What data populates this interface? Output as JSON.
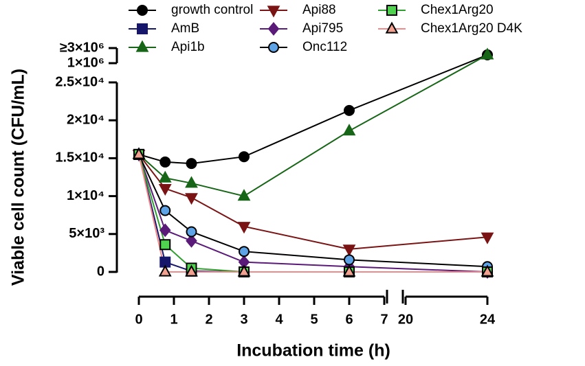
{
  "chart_data": {
    "type": "line",
    "xlabel": "Incubation time (h)",
    "ylabel": "Viable cell count (CFU/mL)",
    "x": [
      0,
      0.75,
      1.5,
      3,
      6,
      24
    ],
    "xlim": [
      0,
      24
    ],
    "xbreak": [
      7,
      20
    ],
    "xticks": [
      0,
      1,
      2,
      3,
      4,
      5,
      6,
      7,
      20,
      24
    ],
    "ylim": [
      0,
      3000000
    ],
    "ybreak": [
      25000,
      1000000
    ],
    "yticks": [
      0,
      {
        "value": 5000,
        "label": "5×10³"
      },
      {
        "value": 10000,
        "label": "1×10⁴"
      },
      {
        "value": 15000,
        "label": "1.5×10⁴"
      },
      {
        "value": 20000,
        "label": "2×10⁴"
      },
      {
        "value": 25000,
        "label": "2.5×10⁴"
      },
      {
        "value": 1000000,
        "label": "1×10⁶"
      },
      {
        "value": 3000000,
        "label": "≥3×10⁶"
      }
    ],
    "series": [
      {
        "name": "growth control",
        "color": "#000000",
        "line_color": "#000000",
        "marker": "circle",
        "values": [
          15500,
          14500,
          14300,
          15200,
          21300,
          2100000
        ]
      },
      {
        "name": "AmB",
        "color": "#16166b",
        "line_color": "#16166b",
        "marker": "square",
        "values": [
          15500,
          1300,
          100,
          0,
          0,
          0
        ]
      },
      {
        "name": "Api1b",
        "color": "#176617",
        "line_color": "#176617",
        "marker": "triangle-up",
        "values": [
          15500,
          12400,
          11700,
          10000,
          18600,
          2100000
        ]
      },
      {
        "name": "Api88",
        "color": "#7a1414",
        "line_color": "#7a1414",
        "marker": "triangle-down",
        "values": [
          15500,
          11000,
          9800,
          6000,
          3000,
          4600
        ]
      },
      {
        "name": "Api795",
        "color": "#5a1a78",
        "line_color": "#5a1a78",
        "marker": "diamond",
        "values": [
          15500,
          5500,
          4100,
          1300,
          700,
          0
        ]
      },
      {
        "name": "Onc112",
        "color": "#5ea3e6",
        "line_color": "#000000",
        "marker": "circle",
        "values": [
          15500,
          8100,
          5300,
          2700,
          1600,
          700
        ]
      },
      {
        "name": "Chex1Arg20",
        "color": "#4fd34f",
        "line_color": "#2e9e2e",
        "marker": "square",
        "values": [
          15500,
          3600,
          500,
          0,
          0,
          0
        ]
      },
      {
        "name": "Chex1Arg20 D4K",
        "color": "#f2a090",
        "line_color": "#f08a8a",
        "marker": "triangle-up",
        "values": [
          15500,
          0,
          0,
          0,
          0,
          0
        ]
      }
    ]
  }
}
